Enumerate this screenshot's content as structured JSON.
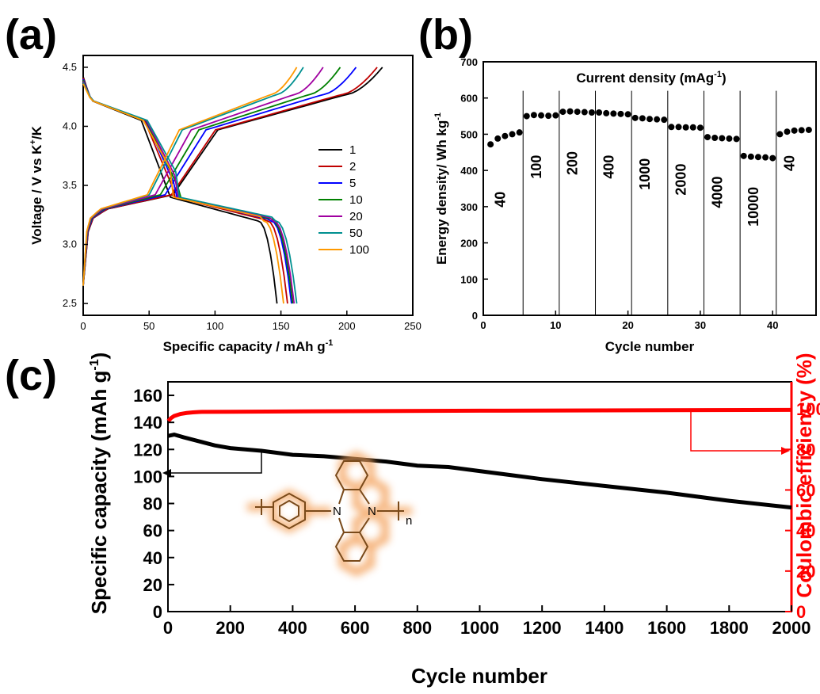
{
  "panels": {
    "a": "(a)",
    "b": "(b)",
    "c": "(c)"
  },
  "colors": {
    "red": "#ff0000",
    "black": "#000000",
    "glow": "#f4a460"
  },
  "structure": {
    "n_label": "N",
    "sub_label": "n",
    "glow_color": "#f4a460",
    "ring_color": "#7a4a1a"
  },
  "chart_data": [
    {
      "id": "a",
      "type": "line",
      "xlabel": "Specific capacity / mAh g",
      "xlabel_sup": "-1",
      "ylabel": "Voltage / V vs K",
      "ylabel_sup": "+",
      "ylabel_tail": "/K",
      "xlim": [
        0,
        250
      ],
      "ylim": [
        2.4,
        4.6
      ],
      "xticks": [
        0,
        50,
        100,
        150,
        200,
        250
      ],
      "yticks": [
        2.5,
        3.0,
        3.5,
        4.0,
        4.5
      ],
      "legend_position": "right",
      "series": [
        {
          "name": "1",
          "color": "#000000",
          "charge_end": 227,
          "discharge_end": 147
        },
        {
          "name": "2",
          "color": "#c00000",
          "charge_end": 223,
          "discharge_end": 155
        },
        {
          "name": "5",
          "color": "#0000ff",
          "charge_end": 207,
          "discharge_end": 158
        },
        {
          "name": "10",
          "color": "#008000",
          "charge_end": 195,
          "discharge_end": 159
        },
        {
          "name": "20",
          "color": "#a000a0",
          "charge_end": 182,
          "discharge_end": 160
        },
        {
          "name": "50",
          "color": "#009090",
          "charge_end": 167,
          "discharge_end": 162
        },
        {
          "name": "100",
          "color": "#ff9900",
          "charge_end": 162,
          "discharge_end": 152
        }
      ]
    },
    {
      "id": "b",
      "type": "scatter",
      "xlabel": "Cycle number",
      "ylabel": "Energy density/ Wh kg",
      "ylabel_sup": "-1",
      "annotation": "Current density (mAg",
      "annotation_sup": "-1",
      "annotation_tail": ")",
      "xlim": [
        0,
        46
      ],
      "ylim": [
        0,
        700
      ],
      "xticks": [
        0,
        10,
        20,
        30,
        40
      ],
      "yticks": [
        0,
        100,
        200,
        300,
        400,
        500,
        600,
        700
      ],
      "separators": [
        5.5,
        10.5,
        15.5,
        20.5,
        25.5,
        30.5,
        35.5,
        40.5
      ],
      "bands": [
        {
          "label": "40",
          "x": 3.0,
          "y": 320
        },
        {
          "label": "100",
          "x": 8.0,
          "y": 410
        },
        {
          "label": "200",
          "x": 13.0,
          "y": 420
        },
        {
          "label": "400",
          "x": 18.0,
          "y": 410
        },
        {
          "label": "1000",
          "x": 23.0,
          "y": 390
        },
        {
          "label": "2000",
          "x": 28.0,
          "y": 375
        },
        {
          "label": "4000",
          "x": 33.0,
          "y": 340
        },
        {
          "label": "10000",
          "x": 38.0,
          "y": 300
        },
        {
          "label": "40",
          "x": 43.0,
          "y": 420
        }
      ],
      "x": [
        1,
        2,
        3,
        4,
        5,
        6,
        7,
        8,
        9,
        10,
        11,
        12,
        13,
        14,
        15,
        16,
        17,
        18,
        19,
        20,
        21,
        22,
        23,
        24,
        25,
        26,
        27,
        28,
        29,
        30,
        31,
        32,
        33,
        34,
        35,
        36,
        37,
        38,
        39,
        40,
        41,
        42,
        43,
        44,
        45
      ],
      "y": [
        472,
        488,
        495,
        500,
        505,
        550,
        553,
        552,
        551,
        552,
        562,
        563,
        562,
        561,
        560,
        560,
        558,
        557,
        556,
        555,
        545,
        544,
        542,
        541,
        540,
        520,
        520,
        519,
        519,
        518,
        492,
        490,
        489,
        488,
        487,
        440,
        438,
        437,
        436,
        434,
        500,
        507,
        510,
        511,
        512
      ]
    },
    {
      "id": "c",
      "type": "line",
      "xlabel": "Cycle number",
      "ylabel": "Specific capacity (mAh g",
      "ylabel_sup": "-1",
      "ylabel_tail": ")",
      "y2label": "Coulombic efficiency (%)",
      "xlim": [
        0,
        2000
      ],
      "ylim": [
        0,
        170
      ],
      "y2lim": [
        0,
        113.33
      ],
      "xticks": [
        0,
        200,
        400,
        600,
        800,
        1000,
        1200,
        1400,
        1600,
        1800,
        2000
      ],
      "yticks": [
        0,
        20,
        40,
        60,
        80,
        100,
        120,
        140,
        160
      ],
      "y2ticks": [
        0,
        20,
        40,
        60,
        80,
        100
      ],
      "capacity": {
        "x": [
          1,
          20,
          50,
          100,
          150,
          200,
          300,
          400,
          500,
          600,
          700,
          800,
          900,
          1000,
          1200,
          1400,
          1600,
          1800,
          2000
        ],
        "y": [
          130,
          131,
          129,
          126,
          123,
          121,
          119,
          116,
          115,
          113,
          111,
          108,
          107,
          104,
          98,
          93,
          88,
          82,
          77
        ]
      },
      "efficiency": {
        "x": [
          1,
          10,
          20,
          40,
          60,
          80,
          100,
          200,
          500,
          1000,
          1500,
          2000
        ],
        "y": [
          94,
          95.5,
          96.5,
          97.5,
          98,
          98.3,
          98.5,
          98.6,
          98.8,
          99.1,
          99.3,
          99.5
        ]
      }
    }
  ]
}
